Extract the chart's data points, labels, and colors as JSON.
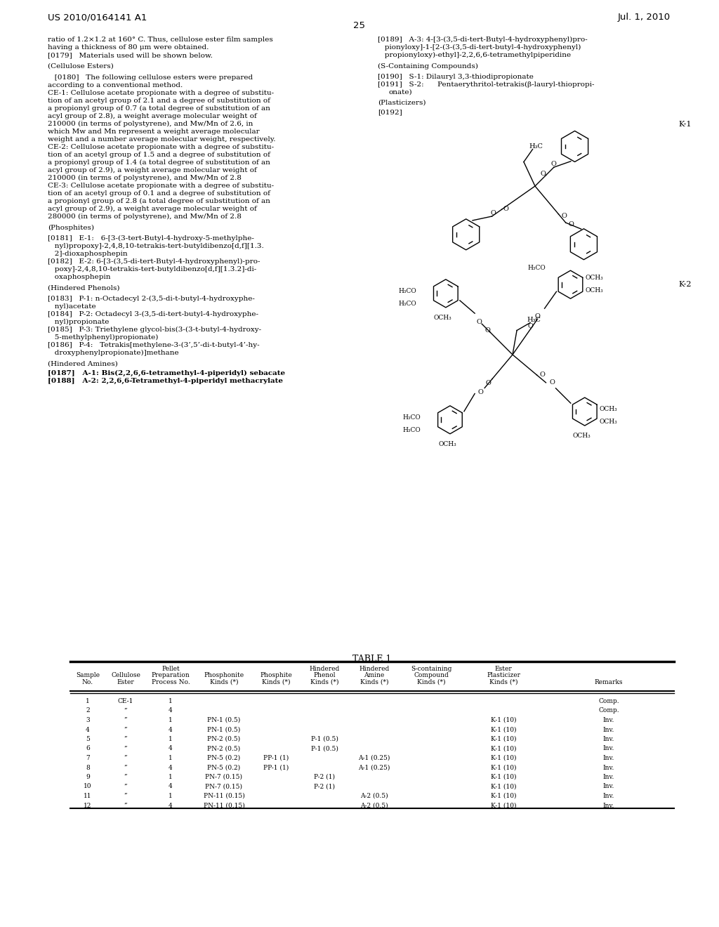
{
  "background_color": "#ffffff",
  "header_left": "US 2010/0164141 A1",
  "header_right": "Jul. 1, 2010",
  "page_number": "25",
  "table_title": "TABLE 1",
  "table_headers_line1": [
    "Sample",
    "Cellulose",
    "Pellet",
    "Phosphonite",
    "Phosphite",
    "Hindered",
    "Hindered",
    "S-containing",
    "Ester",
    ""
  ],
  "table_headers_line0": [
    "",
    "",
    "Preparation",
    "",
    "",
    "Phenol",
    "Amine",
    "Compound",
    "Plasticizer",
    ""
  ],
  "table_headers_line2": [
    "No.",
    "Ester",
    "Process No.",
    "Kinds (*)",
    "Kinds (*)",
    "Kinds (*)",
    "Kinds (*)",
    "Kinds (*)",
    "Kinds (*)",
    "Remarks"
  ],
  "table_rows": [
    [
      "1",
      "CE-1",
      "1",
      "",
      "",
      "",
      "",
      "",
      "",
      "Comp."
    ],
    [
      "2",
      "”",
      "4",
      "",
      "",
      "",
      "",
      "",
      "",
      "Comp."
    ],
    [
      "3",
      "”",
      "1",
      "PN-1 (0.5)",
      "",
      "",
      "",
      "",
      "K-1 (10)",
      "Inv."
    ],
    [
      "4",
      "”",
      "4",
      "PN-1 (0.5)",
      "",
      "",
      "",
      "",
      "K-1 (10)",
      "Inv."
    ],
    [
      "5",
      "”",
      "1",
      "PN-2 (0.5)",
      "",
      "P-1 (0.5)",
      "",
      "",
      "K-1 (10)",
      "Inv."
    ],
    [
      "6",
      "”",
      "4",
      "PN-2 (0.5)",
      "",
      "P-1 (0.5)",
      "",
      "",
      "K-1 (10)",
      "Inv."
    ],
    [
      "7",
      "”",
      "1",
      "PN-5 (0.2)",
      "PP-1 (1)",
      "",
      "A-1 (0.25)",
      "",
      "K-1 (10)",
      "Inv."
    ],
    [
      "8",
      "”",
      "4",
      "PN-5 (0.2)",
      "PP-1 (1)",
      "",
      "A-1 (0.25)",
      "",
      "K-1 (10)",
      "Inv."
    ],
    [
      "9",
      "”",
      "1",
      "PN-7 (0.15)",
      "",
      "P-2 (1)",
      "",
      "",
      "K-1 (10)",
      "Inv."
    ],
    [
      "10",
      "”",
      "4",
      "PN-7 (0.15)",
      "",
      "P-2 (1)",
      "",
      "",
      "K-1 (10)",
      "Inv."
    ],
    [
      "11",
      "”",
      "1",
      "PN-11 (0.15)",
      "",
      "",
      "A-2 (0.5)",
      "",
      "K-1 (10)",
      "Inv."
    ],
    [
      "12",
      "”",
      "4",
      "PN-11 (0.15)",
      "",
      "",
      "A-2 (0.5)",
      "",
      "K-1 (10)",
      "Inv."
    ]
  ]
}
